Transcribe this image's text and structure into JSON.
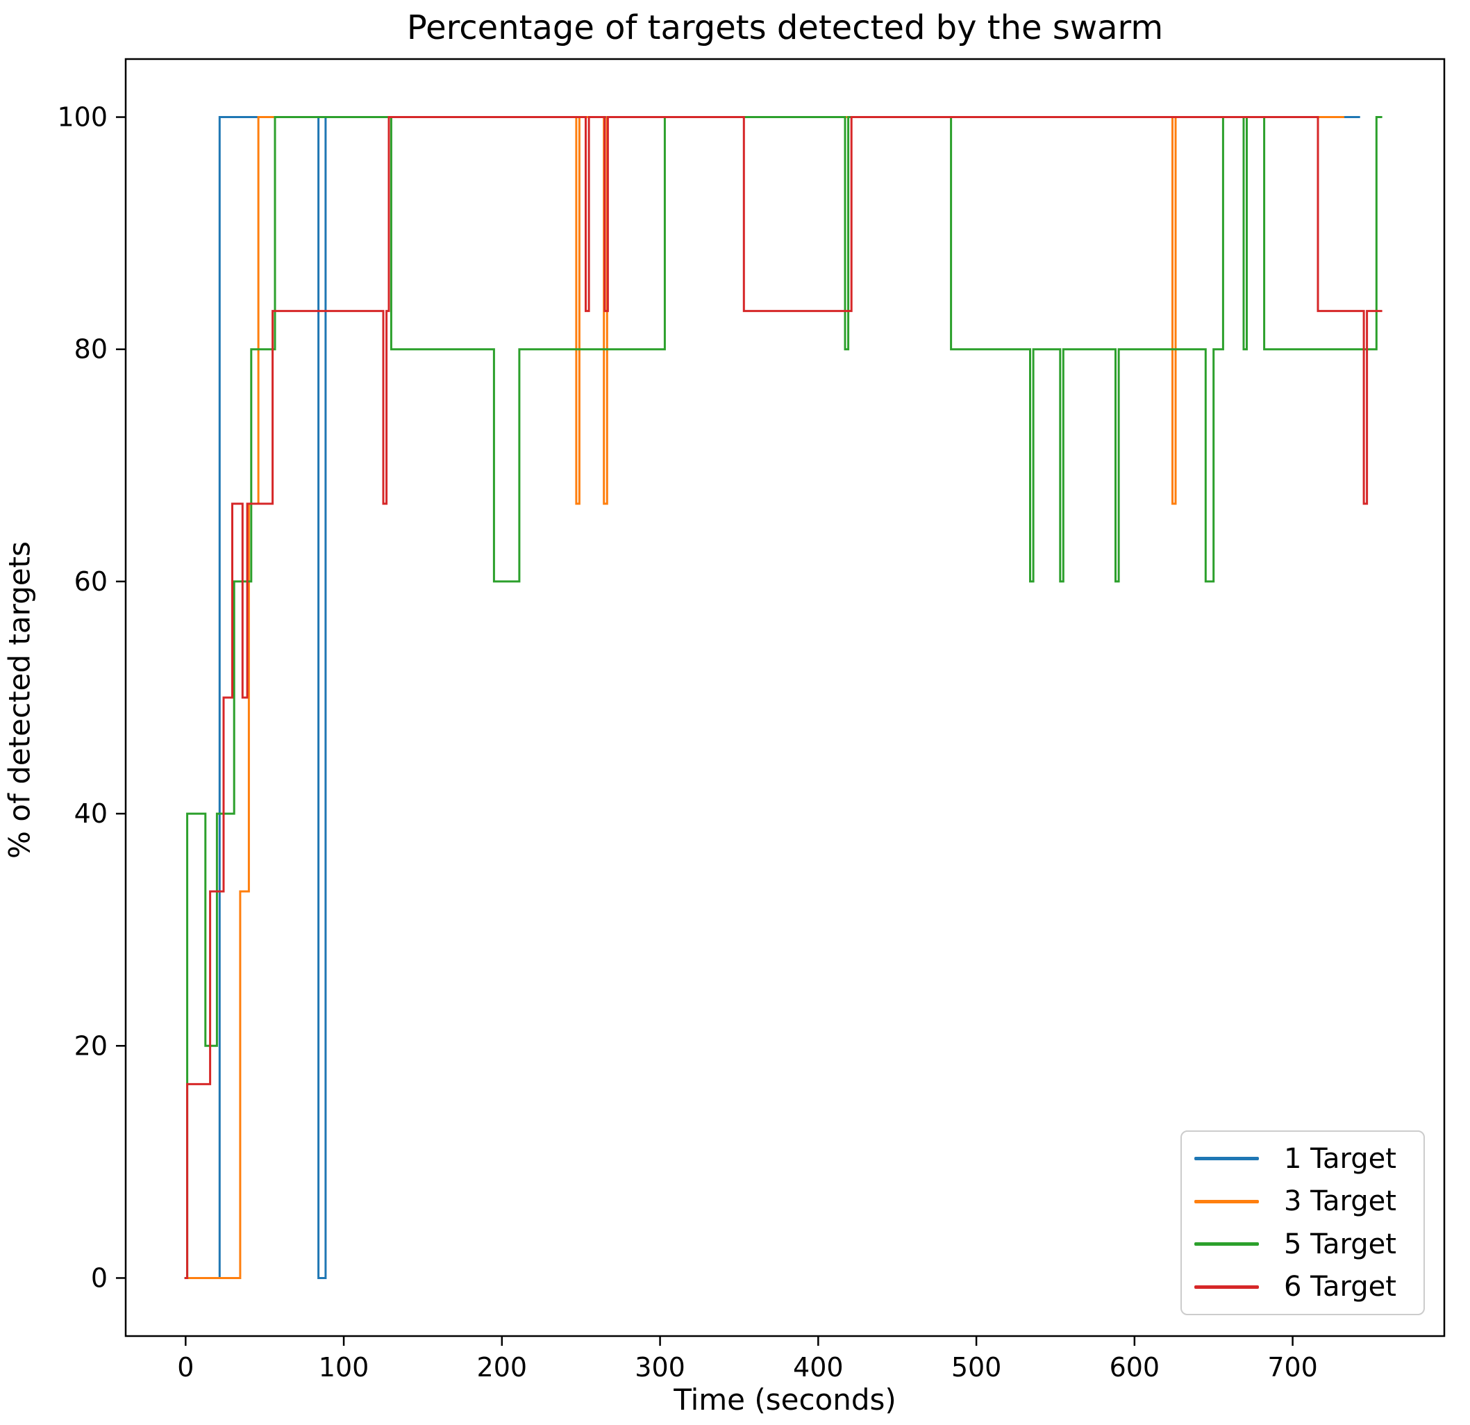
{
  "chart_data": {
    "type": "line",
    "subtype": "step-post",
    "title": "Percentage of targets detected by the swarm",
    "xlabel": "Time (seconds)",
    "ylabel": "% of detected targets",
    "xlim": [
      -37.9,
      795.9
    ],
    "ylim": [
      -5,
      105
    ],
    "xticks": [
      0,
      100,
      200,
      300,
      400,
      500,
      600,
      700
    ],
    "yticks": [
      0,
      20,
      40,
      60,
      80,
      100
    ],
    "grid": false,
    "legend_position": "lower right",
    "axis_color": "#000000",
    "background_color": "#ffffff",
    "series": [
      {
        "label": "1 Target",
        "color": "#1f77b4",
        "points": [
          [
            0,
            0
          ],
          [
            21.5,
            100
          ],
          [
            84,
            0
          ],
          [
            88.5,
            100
          ],
          [
            742,
            100
          ]
        ]
      },
      {
        "label": "3 Target",
        "color": "#ff7f0e",
        "points": [
          [
            0,
            0
          ],
          [
            34.5,
            33.3
          ],
          [
            40,
            66.7
          ],
          [
            46,
            100
          ],
          [
            247,
            66.7
          ],
          [
            249,
            100
          ],
          [
            264.5,
            66.7
          ],
          [
            266.5,
            100
          ],
          [
            624,
            66.7
          ],
          [
            626,
            100
          ],
          [
            732,
            100
          ]
        ]
      },
      {
        "label": "5 Target",
        "color": "#2ca02c",
        "points": [
          [
            0,
            0
          ],
          [
            1,
            40
          ],
          [
            12.5,
            20
          ],
          [
            19.8,
            40
          ],
          [
            30.7,
            60
          ],
          [
            41.5,
            80
          ],
          [
            56.5,
            100
          ],
          [
            130,
            80
          ],
          [
            195,
            60
          ],
          [
            211,
            80
          ],
          [
            303,
            100
          ],
          [
            417,
            80
          ],
          [
            419,
            100
          ],
          [
            484,
            80
          ],
          [
            534,
            60
          ],
          [
            536,
            80
          ],
          [
            553,
            60
          ],
          [
            555,
            80
          ],
          [
            588,
            60
          ],
          [
            590,
            80
          ],
          [
            645,
            60
          ],
          [
            650,
            80
          ],
          [
            656,
            100
          ],
          [
            669,
            80
          ],
          [
            671,
            100
          ],
          [
            682,
            80
          ],
          [
            753,
            100
          ],
          [
            756,
            100
          ]
        ]
      },
      {
        "label": "6 Target",
        "color": "#d62728",
        "points": [
          [
            0,
            0
          ],
          [
            1,
            16.7
          ],
          [
            15.5,
            33.3
          ],
          [
            24,
            50
          ],
          [
            29.5,
            66.7
          ],
          [
            36,
            50
          ],
          [
            39,
            66.7
          ],
          [
            55,
            83.3
          ],
          [
            125,
            66.7
          ],
          [
            127,
            83.3
          ],
          [
            128.5,
            100
          ],
          [
            253,
            83.3
          ],
          [
            255,
            100
          ],
          [
            265,
            83.3
          ],
          [
            267,
            100
          ],
          [
            353,
            83.3
          ],
          [
            421,
            100
          ],
          [
            716,
            83.3
          ],
          [
            745,
            66.7
          ],
          [
            747,
            83.3
          ],
          [
            756,
            83.3
          ]
        ]
      }
    ]
  }
}
